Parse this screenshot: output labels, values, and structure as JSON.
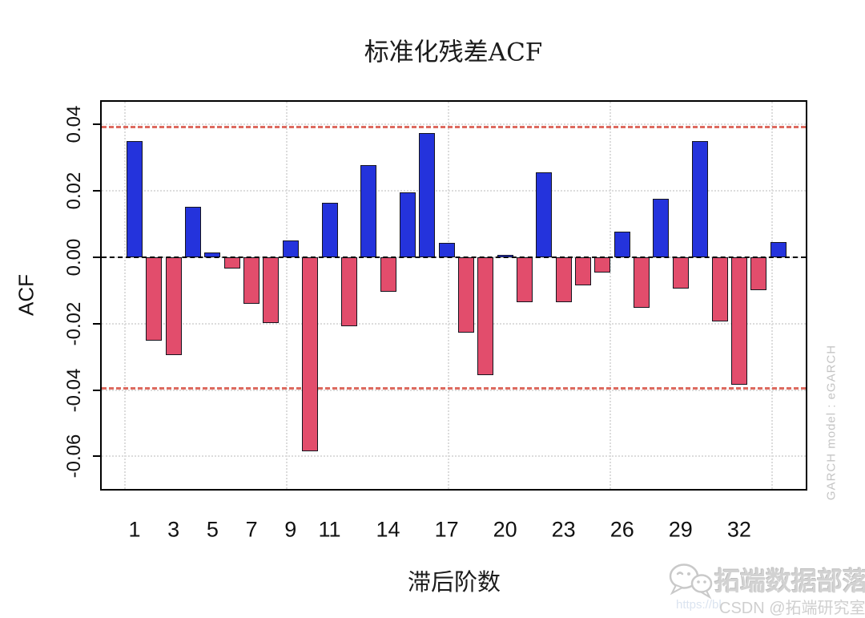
{
  "title": "标准化残差ACF",
  "y_axis": {
    "label": "ACF",
    "tick_labels": [
      "0.04",
      "0.02",
      "0.00",
      "-0.02",
      "-0.04",
      "-0.06"
    ],
    "tick_values": [
      0.04,
      0.02,
      0,
      -0.02,
      -0.04,
      -0.06
    ]
  },
  "x_axis": {
    "label": "滞后阶数",
    "tick_labels": [
      "1",
      "3",
      "5",
      "7",
      "9",
      "11",
      "14",
      "17",
      "20",
      "23",
      "26",
      "29",
      "32"
    ],
    "tick_lags": [
      1,
      3,
      5,
      7,
      9,
      11,
      14,
      17,
      20,
      23,
      26,
      29,
      32
    ]
  },
  "chart_data": {
    "type": "bar",
    "title": "标准化残差ACF",
    "xlabel": "滞后阶数",
    "ylabel": "ACF",
    "x": [
      1,
      2,
      3,
      4,
      5,
      6,
      7,
      8,
      9,
      10,
      11,
      12,
      13,
      14,
      15,
      16,
      17,
      18,
      19,
      20,
      21,
      22,
      23,
      24,
      25,
      26,
      27,
      28,
      29,
      30,
      31,
      32,
      33,
      34
    ],
    "values": [
      0.035,
      -0.0252,
      -0.0295,
      0.0152,
      0.0015,
      -0.0034,
      -0.014,
      -0.0197,
      0.0051,
      -0.0585,
      0.0165,
      -0.0207,
      0.0278,
      -0.0104,
      0.0196,
      0.0374,
      0.0043,
      -0.0226,
      -0.0354,
      0.0008,
      -0.0135,
      0.0256,
      -0.0135,
      -0.0085,
      -0.0046,
      0.0078,
      -0.0151,
      0.0177,
      -0.0094,
      0.035,
      -0.0194,
      -0.0385,
      -0.0098,
      0.0047
    ],
    "confidence_bounds": {
      "upper": 0.0394,
      "lower": -0.0394
    },
    "zero_line": 0,
    "ylim": [
      -0.0703,
      0.0473
    ],
    "grid": true,
    "legend_position": "none",
    "colors": {
      "positive_bar": "#2433dc",
      "negative_bar": "#e24d6c",
      "bound_line": "#dd6a5f",
      "zero_line": "#000000",
      "grid_line": "#dcdcdc",
      "bar_border": "#15151f"
    }
  },
  "side_note": "GARCH model : eGARCH",
  "branding": {
    "logo": "chat-bubbles-logo",
    "name": "拓端数据部落",
    "watermark_url_fragment": "https://bl",
    "csdn_credit": "CSDN @拓端研究室"
  }
}
